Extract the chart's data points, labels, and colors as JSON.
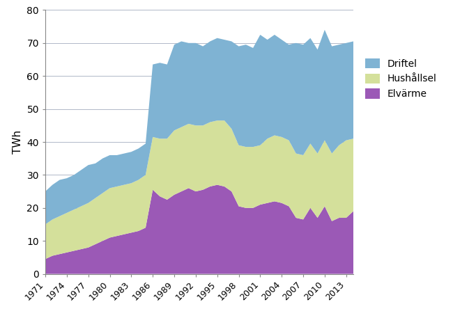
{
  "years": [
    1971,
    1972,
    1973,
    1974,
    1975,
    1976,
    1977,
    1978,
    1979,
    1980,
    1981,
    1982,
    1983,
    1984,
    1985,
    1986,
    1987,
    1988,
    1989,
    1990,
    1991,
    1992,
    1993,
    1994,
    1995,
    1996,
    1997,
    1998,
    1999,
    2000,
    2001,
    2002,
    2003,
    2004,
    2005,
    2006,
    2007,
    2008,
    2009,
    2010,
    2011,
    2012,
    2013,
    2014
  ],
  "elvarme": [
    4.5,
    5.5,
    6.0,
    6.5,
    7.0,
    7.5,
    8.0,
    9.0,
    10.0,
    11.0,
    11.5,
    12.0,
    12.5,
    13.0,
    14.0,
    25.5,
    23.5,
    22.5,
    24.0,
    25.0,
    26.0,
    25.0,
    25.5,
    26.5,
    27.0,
    26.5,
    25.0,
    20.5,
    20.0,
    20.0,
    21.0,
    21.5,
    22.0,
    21.5,
    20.5,
    17.0,
    16.5,
    20.0,
    17.0,
    20.5,
    16.0,
    17.0,
    17.0,
    19.0
  ],
  "hushallsel": [
    10.5,
    11.0,
    11.5,
    12.0,
    12.5,
    13.0,
    13.5,
    14.0,
    14.5,
    15.0,
    15.0,
    15.0,
    15.0,
    15.5,
    16.0,
    16.0,
    17.5,
    18.5,
    19.5,
    19.5,
    19.5,
    20.0,
    19.5,
    19.5,
    19.5,
    20.0,
    19.0,
    18.5,
    18.5,
    18.5,
    18.0,
    19.5,
    20.0,
    20.0,
    20.0,
    19.5,
    19.5,
    19.5,
    19.5,
    20.0,
    20.5,
    22.0,
    23.5,
    22.0
  ],
  "driftel": [
    10.0,
    10.5,
    11.0,
    10.5,
    10.5,
    11.0,
    11.5,
    10.5,
    10.5,
    10.0,
    9.5,
    9.5,
    9.5,
    9.5,
    9.5,
    22.0,
    23.0,
    22.5,
    26.0,
    26.0,
    24.5,
    25.0,
    24.0,
    24.5,
    25.0,
    24.5,
    26.5,
    30.0,
    31.0,
    30.0,
    33.5,
    30.0,
    30.5,
    29.5,
    29.0,
    33.5,
    33.5,
    32.0,
    31.5,
    33.5,
    32.5,
    30.5,
    29.5,
    29.5
  ],
  "colors": {
    "elvarme": "#9b59b6",
    "hushallsel": "#d4e09b",
    "driftel": "#7fb3d3"
  },
  "ylabel": "TWh",
  "ylim": [
    0,
    80
  ],
  "yticks": [
    0,
    10,
    20,
    30,
    40,
    50,
    60,
    70,
    80
  ],
  "xtick_years": [
    1971,
    1974,
    1977,
    1980,
    1983,
    1986,
    1989,
    1992,
    1995,
    1998,
    2001,
    2004,
    2007,
    2010,
    2013
  ]
}
